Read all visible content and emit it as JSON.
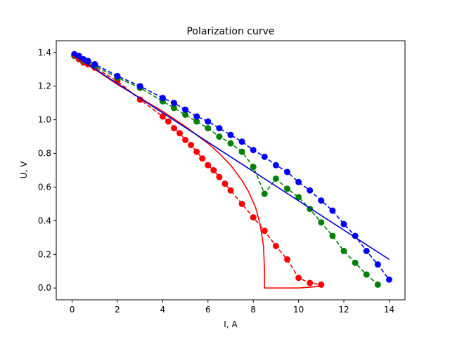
{
  "chart_data": {
    "type": "line",
    "title": "Polarization curve",
    "xlabel": "I, A",
    "ylabel": "U, V",
    "xlim": [
      -0.7,
      14.7
    ],
    "ylim": [
      -0.07,
      1.47
    ],
    "xticks": [
      0,
      2,
      4,
      6,
      8,
      10,
      12,
      14
    ],
    "yticks": [
      0.0,
      0.2,
      0.4,
      0.6,
      0.8,
      1.0,
      1.2,
      1.4
    ],
    "grid": false,
    "legend": "none",
    "series": [
      {
        "color": "#ff0000",
        "style": "dashed",
        "marker": "circle",
        "x": [
          0.1,
          0.3,
          0.5,
          0.7,
          1.0,
          2.0,
          3.0,
          4.0,
          4.25,
          4.5,
          4.75,
          5.0,
          5.25,
          5.5,
          5.75,
          6.0,
          6.25,
          6.5,
          6.75,
          7.0,
          7.5,
          8.0,
          8.5,
          9.0,
          9.5,
          10.0,
          10.5,
          11.0
        ],
        "y": [
          1.38,
          1.36,
          1.34,
          1.33,
          1.31,
          1.23,
          1.12,
          1.02,
          0.99,
          0.95,
          0.92,
          0.88,
          0.85,
          0.81,
          0.77,
          0.73,
          0.7,
          0.66,
          0.62,
          0.58,
          0.5,
          0.42,
          0.34,
          0.25,
          0.17,
          0.06,
          0.03,
          0.02
        ]
      },
      {
        "color": "#008000",
        "style": "dashed",
        "marker": "circle",
        "x": [
          0.1,
          0.3,
          0.5,
          0.7,
          1.0,
          2.0,
          3.0,
          4.0,
          4.5,
          5.0,
          5.5,
          6.0,
          6.5,
          7.0,
          7.5,
          8.0,
          8.5,
          9.0,
          9.5,
          10.0,
          10.5,
          11.0,
          11.5,
          12.0,
          12.5,
          13.0,
          13.5
        ],
        "y": [
          1.38,
          1.37,
          1.35,
          1.34,
          1.32,
          1.25,
          1.19,
          1.11,
          1.07,
          1.03,
          0.99,
          0.95,
          0.9,
          0.86,
          0.81,
          0.72,
          0.56,
          0.65,
          0.59,
          0.54,
          0.47,
          0.39,
          0.31,
          0.22,
          0.15,
          0.08,
          0.02
        ]
      },
      {
        "color": "#0000ff",
        "style": "dashed",
        "marker": "circle",
        "x": [
          0.1,
          0.3,
          0.5,
          0.7,
          1.0,
          2.0,
          3.0,
          4.0,
          4.5,
          5.0,
          5.5,
          6.0,
          6.5,
          7.0,
          7.5,
          8.0,
          8.5,
          9.0,
          9.5,
          10.0,
          10.5,
          11.0,
          11.5,
          12.0,
          12.5,
          13.0,
          13.5,
          14.0
        ],
        "y": [
          1.39,
          1.38,
          1.36,
          1.35,
          1.33,
          1.26,
          1.2,
          1.13,
          1.1,
          1.06,
          1.02,
          0.99,
          0.95,
          0.91,
          0.87,
          0.82,
          0.78,
          0.73,
          0.69,
          0.63,
          0.58,
          0.52,
          0.46,
          0.38,
          0.31,
          0.22,
          0.14,
          0.05
        ]
      },
      {
        "color": "#ff0000",
        "style": "solid",
        "marker": "none",
        "x": [
          0.0,
          0.5,
          1.0,
          2.0,
          3.0,
          4.0,
          5.0,
          6.0,
          6.5,
          7.0,
          7.5,
          7.8,
          8.1,
          8.3,
          8.45,
          8.5,
          8.5,
          8.6,
          9.0,
          10.0,
          11.0
        ],
        "y": [
          1.38,
          1.34,
          1.3,
          1.21,
          1.13,
          1.05,
          0.96,
          0.86,
          0.8,
          0.73,
          0.64,
          0.57,
          0.48,
          0.38,
          0.25,
          0.1,
          0.0,
          0.0,
          0.0,
          0.0,
          0.01
        ]
      },
      {
        "color": "#0000cc",
        "style": "solid",
        "marker": "none",
        "x": [
          0.0,
          14.0
        ],
        "y": [
          1.39,
          0.17
        ]
      }
    ]
  }
}
